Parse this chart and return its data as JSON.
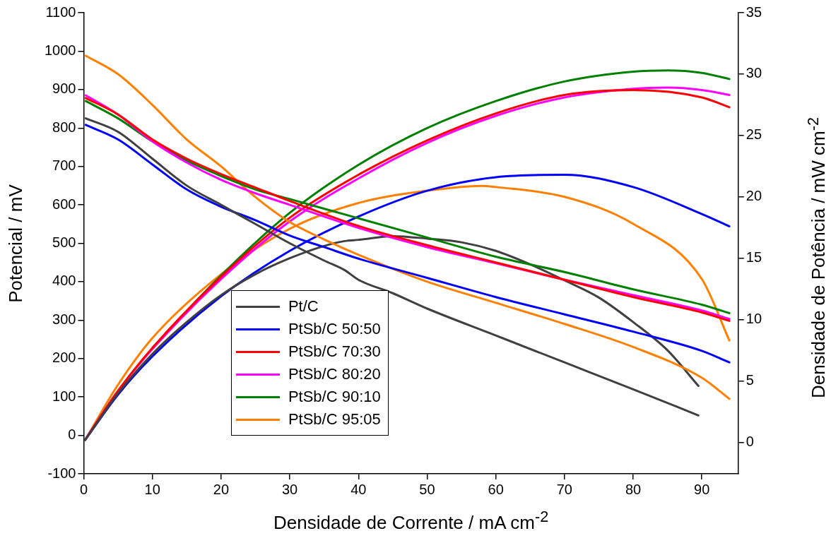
{
  "chart_data": {
    "type": "line",
    "xlabel": "Densidade de Corrente / mA cm$^{-2}$",
    "ylabel": "Potencial / mV",
    "y2label": "Densidade de Potência / mW cm$^{-2}$",
    "xlim": [
      0,
      95.3
    ],
    "xticks": [
      0,
      10,
      20,
      30,
      40,
      50,
      60,
      70,
      80,
      90
    ],
    "ylim": [
      -100,
      1100
    ],
    "yticks": [
      -100,
      0,
      100,
      200,
      300,
      400,
      500,
      600,
      700,
      800,
      900,
      1000,
      1100
    ],
    "y2lim": [
      -2.56,
      35
    ],
    "y2ticks": [
      0,
      5,
      10,
      15,
      20,
      25,
      30,
      35
    ],
    "grid": false,
    "legend": "bottom left",
    "marker": "none",
    "line_style": "solid",
    "series": [
      {
        "name": "Pt/C",
        "color": "#404040",
        "x": [
          0.3,
          5,
          10,
          15,
          20,
          25,
          30,
          35,
          38,
          40,
          45,
          50,
          60,
          70,
          80,
          89.5
        ],
        "values": [
          825,
          790,
          720,
          650,
          600,
          550,
          500,
          455,
          430,
          405,
          370,
          330,
          260,
          190,
          120,
          52
        ]
      },
      {
        "name": "PtSb/C 50:50",
        "color": "#0000ff",
        "x": [
          0.3,
          5,
          10,
          15,
          20,
          25,
          30,
          35,
          40,
          50,
          60,
          70,
          80,
          90,
          94
        ],
        "values": [
          808,
          770,
          705,
          640,
          595,
          560,
          520,
          490,
          460,
          410,
          360,
          315,
          270,
          220,
          190
        ]
      },
      {
        "name": "PtSb/C 70:30",
        "color": "#ff0000",
        "x": [
          0.3,
          5,
          10,
          15,
          20,
          25,
          30,
          40,
          50,
          60,
          70,
          80,
          90,
          94
        ],
        "values": [
          878,
          835,
          770,
          720,
          680,
          645,
          610,
          545,
          495,
          450,
          405,
          360,
          320,
          298
        ]
      },
      {
        "name": "PtSb/C 80:20",
        "color": "#ff00ff",
        "x": [
          0.3,
          5,
          10,
          15,
          20,
          25,
          30,
          40,
          50,
          60,
          70,
          80,
          90,
          94
        ],
        "values": [
          885,
          835,
          765,
          710,
          665,
          630,
          600,
          540,
          490,
          448,
          405,
          365,
          325,
          303
        ]
      },
      {
        "name": "PtSb/C 90:10",
        "color": "#008000",
        "x": [
          0.3,
          5,
          10,
          15,
          20,
          25,
          30,
          40,
          50,
          60,
          70,
          80,
          90,
          94
        ],
        "values": [
          870,
          825,
          765,
          715,
          675,
          640,
          615,
          565,
          515,
          465,
          425,
          380,
          340,
          318
        ]
      },
      {
        "name": "PtSb/C 95:05",
        "color": "#ff8000",
        "x": [
          0.3,
          5,
          10,
          15,
          20,
          25,
          30,
          35,
          40,
          50,
          60,
          70,
          80,
          90,
          94
        ],
        "values": [
          988,
          940,
          860,
          770,
          700,
          620,
          555,
          510,
          470,
          400,
          345,
          290,
          230,
          150,
          95
        ]
      },
      {
        "color": "#404040",
        "axis": "y2",
        "x": [
          0.2,
          5,
          10,
          15,
          20,
          25,
          30,
          35,
          38,
          40,
          45,
          50,
          55,
          60,
          65,
          70,
          75,
          80,
          85,
          89.5
        ],
        "values": [
          0.2,
          4,
          7.2,
          9.8,
          12,
          13.7,
          15,
          16,
          16.4,
          16.5,
          16.8,
          16.6,
          16.3,
          15.6,
          14.5,
          13.2,
          11.8,
          9.8,
          7.5,
          4.6
        ]
      },
      {
        "color": "#0000ff",
        "axis": "y2",
        "x": [
          0.2,
          5,
          10,
          20,
          30,
          40,
          50,
          60,
          70,
          80,
          90,
          94
        ],
        "values": [
          0.2,
          3.9,
          7,
          11.9,
          15.6,
          18.4,
          20.5,
          21.6,
          21.8,
          20.8,
          18.6,
          17.6
        ]
      },
      {
        "color": "#ff0000",
        "axis": "y2",
        "x": [
          0.2,
          5,
          10,
          20,
          30,
          40,
          50,
          60,
          70,
          80,
          90,
          94
        ],
        "values": [
          0.2,
          4.2,
          7.7,
          13.5,
          18.3,
          21.8,
          24.6,
          26.8,
          28.3,
          28.7,
          28.1,
          27.3
        ]
      },
      {
        "color": "#ff00ff",
        "axis": "y2",
        "x": [
          0.2,
          5,
          10,
          20,
          30,
          40,
          50,
          60,
          70,
          80,
          85,
          90,
          94
        ],
        "values": [
          0.2,
          4.2,
          7.6,
          13.3,
          18,
          21.5,
          24.4,
          26.6,
          28.1,
          28.8,
          28.9,
          28.7,
          28.3
        ]
      },
      {
        "color": "#008000",
        "axis": "y2",
        "x": [
          10,
          20,
          30,
          40,
          50,
          60,
          70,
          80,
          85,
          90,
          94
        ],
        "values": [
          7.7,
          13.6,
          18.7,
          22.6,
          25.6,
          27.8,
          29.4,
          30.2,
          30.3,
          30.1,
          29.6
        ]
      },
      {
        "color": "#ff8000",
        "axis": "y2",
        "x": [
          0.2,
          5,
          10,
          20,
          30,
          40,
          50,
          58,
          60,
          70,
          80,
          90,
          94
        ],
        "values": [
          0.2,
          4.7,
          8.5,
          13.7,
          17.4,
          19.5,
          20.5,
          20.9,
          20.8,
          20,
          17.8,
          13.3,
          8.3
        ]
      }
    ]
  }
}
